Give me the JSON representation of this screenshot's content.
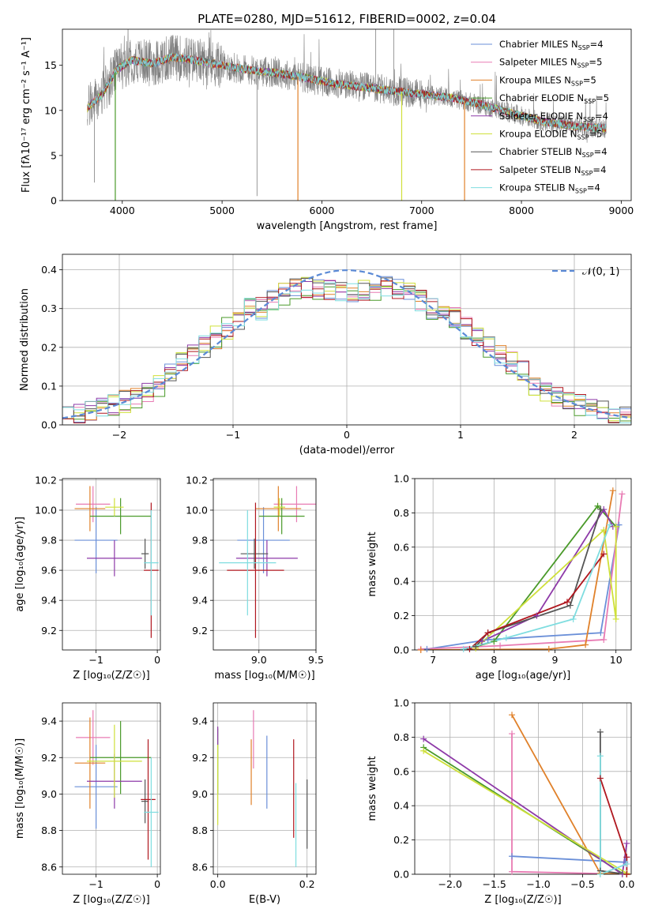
{
  "colors": {
    "grid": "#b0b0b0",
    "axis": "#000000",
    "normal_curve": "#5b8ad6"
  },
  "models": [
    {
      "name": "Chabrier MILES",
      "nssp": "4",
      "color": "#6a8fd8"
    },
    {
      "name": "Salpeter MILES",
      "nssp": "5",
      "color": "#e87bb3"
    },
    {
      "name": "Kroupa MILES",
      "nssp": "5",
      "color": "#e0812a"
    },
    {
      "name": "Chabrier ELODIE",
      "nssp": "5",
      "color": "#4a9a2a"
    },
    {
      "name": "Salpeter ELODIE",
      "nssp": "4",
      "color": "#8e3aa8"
    },
    {
      "name": "Kroupa ELODIE",
      "nssp": "5",
      "color": "#cfe03a"
    },
    {
      "name": "Chabrier STELIB",
      "nssp": "4",
      "color": "#555555"
    },
    {
      "name": "Salpeter STELIB",
      "nssp": "4",
      "color": "#b0171f"
    },
    {
      "name": "Kroupa STELIB",
      "nssp": "4",
      "color": "#7fdde0"
    }
  ],
  "chart_data": [
    {
      "id": "spectrum",
      "type": "line",
      "title": "PLATE=0280, MJD=51612, FIBERID=0002, z=0.04",
      "xlabel": "wavelength [Angstrom, rest frame]",
      "ylabel": "Flux [fλ10⁻¹⁷ erg cm⁻² s⁻¹ A⁻¹]",
      "xlim": [
        3400,
        9100
      ],
      "ylim": [
        0,
        19
      ],
      "xticks": [
        4000,
        5000,
        6000,
        7000,
        8000,
        9000
      ],
      "yticks": [
        0,
        5,
        10,
        15
      ],
      "legend_position": "top-right",
      "data_color": "#808080",
      "continuum_points": [
        [
          3650,
          10.2
        ],
        [
          3700,
          10.8
        ],
        [
          3800,
          11.8
        ],
        [
          3950,
          14.6
        ],
        [
          4100,
          15.6
        ],
        [
          4300,
          15.2
        ],
        [
          4500,
          15.9
        ],
        [
          4700,
          15.6
        ],
        [
          4900,
          15.2
        ],
        [
          5200,
          14.6
        ],
        [
          5500,
          14.2
        ],
        [
          5800,
          13.7
        ],
        [
          6100,
          13.0
        ],
        [
          6400,
          12.6
        ],
        [
          6700,
          12.2
        ],
        [
          7000,
          11.8
        ],
        [
          7300,
          11.4
        ],
        [
          7600,
          10.6
        ],
        [
          7900,
          9.7
        ],
        [
          8200,
          8.8
        ],
        [
          8500,
          8.3
        ],
        [
          8850,
          8.0
        ]
      ],
      "model_dips": [
        {
          "model": 3,
          "x": 3930,
          "y": 0
        },
        {
          "model": 2,
          "x": 5760,
          "y": 0
        },
        {
          "model": 5,
          "x": 6800,
          "y": 0
        },
        {
          "model": 2,
          "x": 7430,
          "y": 0
        }
      ],
      "data_spikes": [
        {
          "x": 5350,
          "y": 0.5
        },
        {
          "x": 6540,
          "y": 19
        },
        {
          "x": 6720,
          "y": 19
        },
        {
          "x": 3720,
          "y": 2
        }
      ]
    },
    {
      "id": "residuals",
      "type": "histogram",
      "xlabel": "(data-model)/error",
      "ylabel": "Normed distribution",
      "xlim": [
        -2.5,
        2.5
      ],
      "ylim": [
        0,
        0.44
      ],
      "xticks": [
        -2,
        -1,
        0,
        1,
        2
      ],
      "yticks": [
        0,
        0.1,
        0.2,
        0.3,
        0.4
      ],
      "reference_curve": "𝒩(0, 1)",
      "legend_position": "top-right",
      "bin_width": 0.1
    },
    {
      "id": "age-vs-Z",
      "type": "errorbar",
      "xlabel": "Z [log₁₀(Z/Z☉)]",
      "ylabel": "age  [log₁₀(age/yr)]",
      "xlim": [
        -1.55,
        0.05
      ],
      "ylim": [
        9.07,
        10.21
      ],
      "xticks": [
        -1,
        0
      ],
      "yticks": [
        9.2,
        9.4,
        9.6,
        9.8,
        10.0,
        10.2
      ],
      "points": [
        {
          "model": 0,
          "x": -1.0,
          "xerr": 0.35,
          "y": 9.8,
          "yerr": 0.22
        },
        {
          "model": 1,
          "x": -1.05,
          "xerr": 0.28,
          "y": 10.04,
          "yerr": 0.12
        },
        {
          "model": 2,
          "x": -1.1,
          "xerr": 0.25,
          "y": 10.01,
          "yerr": 0.15
        },
        {
          "model": 3,
          "x": -0.6,
          "xerr": 0.5,
          "y": 9.96,
          "yerr": 0.12
        },
        {
          "model": 4,
          "x": -0.7,
          "xerr": 0.45,
          "y": 9.68,
          "yerr": 0.12
        },
        {
          "model": 5,
          "x": -0.7,
          "xerr": 0.15,
          "y": 10.02,
          "yerr": 0.06
        },
        {
          "model": 6,
          "x": -0.2,
          "xerr": 0.06,
          "y": 9.71,
          "yerr": 0.1
        },
        {
          "model": 7,
          "x": -0.1,
          "xerr": 0.12,
          "y": 9.6,
          "yerr": 0.45
        },
        {
          "model": 8,
          "x": -0.1,
          "xerr": 0.12,
          "y": 9.65,
          "yerr": 0.35
        }
      ]
    },
    {
      "id": "age-vs-mass",
      "type": "errorbar",
      "xlabel": "mass [log₁₀(M/M☉)]",
      "ylabel": "",
      "xlim": [
        8.6,
        9.5
      ],
      "ylim": [
        9.07,
        10.21
      ],
      "xticks": [
        9.0,
        9.5
      ],
      "yticks": [
        9.2,
        9.4,
        9.6,
        9.8,
        10.0,
        10.2
      ],
      "points": [
        {
          "model": 0,
          "x": 9.04,
          "xerr": 0.23,
          "y": 9.8,
          "yerr": 0.22
        },
        {
          "model": 1,
          "x": 9.33,
          "xerr": 0.2,
          "y": 10.04,
          "yerr": 0.12
        },
        {
          "model": 2,
          "x": 9.17,
          "xerr": 0.2,
          "y": 10.01,
          "yerr": 0.15
        },
        {
          "model": 3,
          "x": 9.2,
          "xerr": 0.2,
          "y": 9.96,
          "yerr": 0.12
        },
        {
          "model": 4,
          "x": 9.07,
          "xerr": 0.27,
          "y": 9.68,
          "yerr": 0.12
        },
        {
          "model": 5,
          "x": 9.18,
          "xerr": 0.05,
          "y": 10.02,
          "yerr": 0.06
        },
        {
          "model": 6,
          "x": 8.96,
          "xerr": 0.12,
          "y": 9.71,
          "yerr": 0.1
        },
        {
          "model": 7,
          "x": 8.97,
          "xerr": 0.25,
          "y": 9.6,
          "yerr": 0.45
        },
        {
          "model": 8,
          "x": 8.9,
          "xerr": 0.25,
          "y": 9.65,
          "yerr": 0.35
        }
      ]
    },
    {
      "id": "weight-vs-age",
      "type": "line",
      "xlabel": "age  [log₁₀(age/yr)]",
      "ylabel": "mass weight",
      "xlim": [
        6.7,
        10.25
      ],
      "ylim": [
        0,
        1.0
      ],
      "xticks": [
        7,
        8,
        9,
        10
      ],
      "yticks": [
        0.0,
        0.2,
        0.4,
        0.6,
        0.8,
        1.0
      ],
      "series": [
        {
          "model": 0,
          "points": [
            [
              6.9,
              0.005
            ],
            [
              7.9,
              0.06
            ],
            [
              9.75,
              0.1
            ],
            [
              10.05,
              0.73
            ]
          ]
        },
        {
          "model": 1,
          "points": [
            [
              6.8,
              0.005
            ],
            [
              8.1,
              0.025
            ],
            [
              9.8,
              0.06
            ],
            [
              10.1,
              0.91
            ]
          ]
        },
        {
          "model": 2,
          "points": [
            [
              6.8,
              0.0
            ],
            [
              8.9,
              0.005
            ],
            [
              9.5,
              0.03
            ],
            [
              9.95,
              0.93
            ]
          ]
        },
        {
          "model": 3,
          "points": [
            [
              7.7,
              0.02
            ],
            [
              8.0,
              0.05
            ],
            [
              9.7,
              0.84
            ],
            [
              10.0,
              0.72
            ]
          ]
        },
        {
          "model": 4,
          "points": [
            [
              7.8,
              0.05
            ],
            [
              8.7,
              0.2
            ],
            [
              9.8,
              0.82
            ],
            [
              9.95,
              0.72
            ]
          ]
        },
        {
          "model": 5,
          "points": [
            [
              7.7,
              0.01
            ],
            [
              9.8,
              0.7
            ],
            [
              10.0,
              0.18
            ],
            [
              10.0,
              0.72
            ]
          ]
        },
        {
          "model": 6,
          "points": [
            [
              7.7,
              0.02
            ],
            [
              7.9,
              0.1
            ],
            [
              9.25,
              0.26
            ],
            [
              9.75,
              0.82
            ]
          ]
        },
        {
          "model": 7,
          "points": [
            [
              7.6,
              0.005
            ],
            [
              7.9,
              0.1
            ],
            [
              9.2,
              0.28
            ],
            [
              9.8,
              0.56
            ]
          ]
        },
        {
          "model": 8,
          "points": [
            [
              7.5,
              0.005
            ],
            [
              8.2,
              0.07
            ],
            [
              9.3,
              0.18
            ],
            [
              9.9,
              0.73
            ]
          ]
        }
      ]
    },
    {
      "id": "mass-vs-Z",
      "type": "errorbar",
      "xlabel": "Z [log₁₀(Z/Z☉)]",
      "ylabel": "mass [log₁₀(M/M☉)]",
      "xlim": [
        -1.55,
        0.05
      ],
      "ylim": [
        8.56,
        9.5
      ],
      "xticks": [
        -1,
        0
      ],
      "yticks": [
        8.6,
        8.8,
        9.0,
        9.2,
        9.4
      ],
      "points": [
        {
          "model": 0,
          "x": -1.0,
          "xerr": 0.35,
          "y": 9.04,
          "yerr": 0.23
        },
        {
          "model": 1,
          "x": -1.05,
          "xerr": 0.28,
          "y": 9.31,
          "yerr": 0.15
        },
        {
          "model": 2,
          "x": -1.1,
          "xerr": 0.25,
          "y": 9.17,
          "yerr": 0.25
        },
        {
          "model": 3,
          "x": -0.6,
          "xerr": 0.5,
          "y": 9.2,
          "yerr": 0.2
        },
        {
          "model": 4,
          "x": -0.7,
          "xerr": 0.45,
          "y": 9.07,
          "yerr": 0.15
        },
        {
          "model": 5,
          "x": -0.7,
          "xerr": 0.45,
          "y": 9.18,
          "yerr": 0.2
        },
        {
          "model": 6,
          "x": -0.2,
          "xerr": 0.06,
          "y": 8.96,
          "yerr": 0.12
        },
        {
          "model": 7,
          "x": -0.15,
          "xerr": 0.12,
          "y": 8.97,
          "yerr": 0.33
        },
        {
          "model": 8,
          "x": -0.1,
          "xerr": 0.12,
          "y": 8.9,
          "yerr": 0.3
        }
      ]
    },
    {
      "id": "mass-vs-EBV",
      "type": "errorbar",
      "xlabel": "E(B-V)",
      "ylabel": "",
      "xlim": [
        -0.01,
        0.22
      ],
      "ylim": [
        8.56,
        9.5
      ],
      "xticks": [
        0.0,
        0.2
      ],
      "yticks": [
        8.6,
        8.8,
        9.0,
        9.2,
        9.4
      ],
      "points": [
        {
          "model": 0,
          "x": 0.11,
          "xerr": 0,
          "y": 9.12,
          "yerr": 0.2
        },
        {
          "model": 1,
          "x": 0.08,
          "xerr": 0,
          "y": 9.3,
          "yerr": 0.16
        },
        {
          "model": 2,
          "x": 0.075,
          "xerr": 0,
          "y": 9.12,
          "yerr": 0.18
        },
        {
          "model": 3,
          "x": 0.0,
          "xerr": 0,
          "y": 9.18,
          "yerr": 0.18
        },
        {
          "model": 4,
          "x": 0.0,
          "xerr": 0,
          "y": 9.32,
          "yerr": 0.05
        },
        {
          "model": 5,
          "x": 0.0,
          "xerr": 0,
          "y": 9.05,
          "yerr": 0.22
        },
        {
          "model": 6,
          "x": 0.2,
          "xerr": 0,
          "y": 8.89,
          "yerr": 0.19
        },
        {
          "model": 7,
          "x": 0.17,
          "xerr": 0,
          "y": 9.03,
          "yerr": 0.27
        },
        {
          "model": 8,
          "x": 0.175,
          "xerr": 0,
          "y": 8.83,
          "yerr": 0.23
        }
      ]
    },
    {
      "id": "weight-vs-Z",
      "type": "line",
      "xlabel": "Z [log₁₀(Z/Z☉)]",
      "ylabel": "mass weight",
      "xlim": [
        -2.4,
        0.05
      ],
      "ylim": [
        0,
        1.0
      ],
      "xticks": [
        -2.0,
        -1.5,
        -1.0,
        -0.5,
        0.0
      ],
      "yticks": [
        0.0,
        0.2,
        0.4,
        0.6,
        0.8,
        1.0
      ],
      "series": [
        {
          "model": 0,
          "points": [
            [
              -1.3,
              0.105
            ],
            [
              -0.02,
              0.07
            ],
            [
              0.0,
              0.1
            ]
          ]
        },
        {
          "model": 1,
          "points": [
            [
              -1.3,
              0.82
            ],
            [
              -1.3,
              0.015
            ],
            [
              0.0,
              0.0
            ]
          ]
        },
        {
          "model": 2,
          "points": [
            [
              -1.3,
              0.93
            ],
            [
              -0.3,
              0.005
            ],
            [
              0.0,
              0.0
            ]
          ]
        },
        {
          "model": 3,
          "points": [
            [
              -2.3,
              0.74
            ],
            [
              -0.05,
              0.005
            ],
            [
              0.0,
              0.0
            ]
          ]
        },
        {
          "model": 4,
          "points": [
            [
              -2.3,
              0.79
            ],
            [
              -0.05,
              0.0
            ],
            [
              0.0,
              0.18
            ]
          ]
        },
        {
          "model": 5,
          "points": [
            [
              -2.3,
              0.72
            ],
            [
              0.0,
              0.005
            ],
            [
              0.0,
              0.0
            ]
          ]
        },
        {
          "model": 6,
          "points": [
            [
              -0.3,
              0.83
            ],
            [
              -0.3,
              0.02
            ],
            [
              0.0,
              0.0
            ]
          ]
        },
        {
          "model": 7,
          "points": [
            [
              -0.3,
              0.56
            ],
            [
              0.0,
              0.1
            ],
            [
              0.0,
              0.0
            ]
          ]
        },
        {
          "model": 8,
          "points": [
            [
              -0.3,
              0.69
            ],
            [
              -0.3,
              0.0
            ],
            [
              0.0,
              0.06
            ]
          ]
        }
      ]
    }
  ]
}
